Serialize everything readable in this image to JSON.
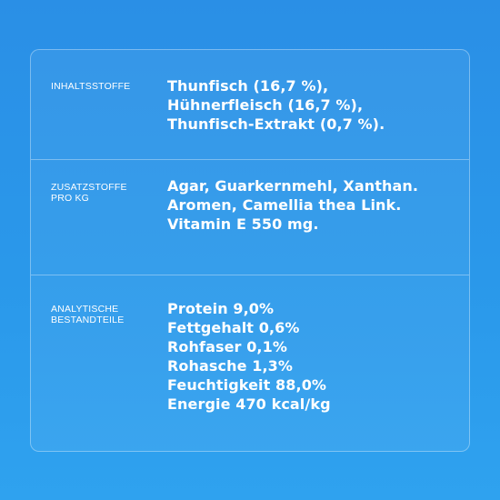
{
  "sections": [
    {
      "label_lines": [
        "INHALTSSTOFFE"
      ],
      "value_lines": [
        "Thunfisch (16,7 %),",
        "Hühnerfleisch (16,7 %),",
        "Thunfisch-Extrakt (0,7 %)."
      ]
    },
    {
      "label_lines": [
        "ZUSATZSTOFFE",
        "PRO KG"
      ],
      "value_lines": [
        "Agar, Guarkernmehl, Xanthan.",
        "Aromen, Camellia thea Link.",
        "Vitamin E 550 mg."
      ]
    },
    {
      "label_lines": [
        "ANALYTISCHE",
        "BESTANDTEILE"
      ],
      "value_lines": [
        "Protein 9,0%",
        "Fettgehalt 0,6%",
        "Rohfaser 0,1%",
        "Rohasche 1,3%",
        "Feuchtigkeit 88,0%",
        "Energie 470 kcal/kg"
      ]
    }
  ]
}
